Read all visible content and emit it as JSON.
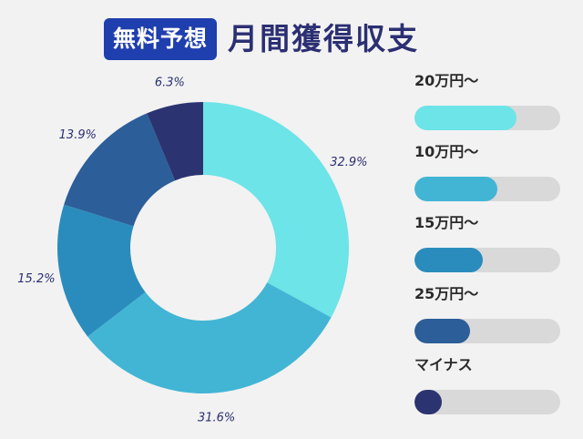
{
  "header": {
    "badge": "無料予想",
    "title": "月間獲得収支"
  },
  "chart_data": {
    "type": "pie",
    "donut": true,
    "slices": [
      {
        "label": "20万円〜",
        "value": 32.9,
        "label_text": "32.9%",
        "color": "#6ce4e8"
      },
      {
        "label": "10万円〜",
        "value": 31.6,
        "label_text": "31.6%",
        "color": "#42b5d5"
      },
      {
        "label": "15万円〜",
        "value": 15.2,
        "label_text": "15.2%",
        "color": "#2a8cbc"
      },
      {
        "label": "25万円〜",
        "value": 13.9,
        "label_text": "13.9%",
        "color": "#2c5e99"
      },
      {
        "label": "マイナス",
        "value": 6.3,
        "label_text": "6.3%",
        "color": "#2b3470"
      }
    ],
    "legend_bars": [
      {
        "label": "20万円〜",
        "fill": 0.7,
        "color": "#6ce4e8"
      },
      {
        "label": "10万円〜",
        "fill": 0.57,
        "color": "#42b5d5"
      },
      {
        "label": "15万円〜",
        "fill": 0.47,
        "color": "#2a8cbc"
      },
      {
        "label": "25万円〜",
        "fill": 0.38,
        "color": "#2c5e99"
      },
      {
        "label": "マイナス",
        "fill": 0.19,
        "color": "#2b3470"
      }
    ],
    "legend_placement": "right"
  }
}
